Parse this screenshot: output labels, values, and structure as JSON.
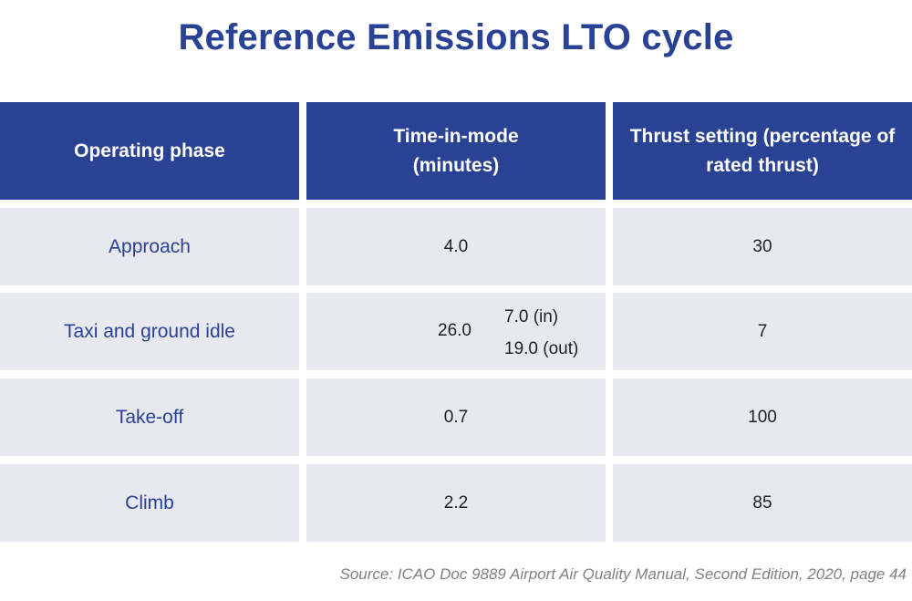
{
  "title": "Reference Emissions LTO cycle",
  "table": {
    "headers": [
      "Operating phase",
      "Time-in-mode (minutes)",
      "Thrust setting (percentage of rated thrust)"
    ],
    "rows": [
      {
        "phase": "Approach",
        "time": "4.0",
        "thrust": "30"
      },
      {
        "phase": "Taxi and ground idle",
        "time": "26.0",
        "time_in": "7.0 (in)",
        "time_out": "19.0 (out)",
        "thrust": "7"
      },
      {
        "phase": "Take-off",
        "time": "0.7",
        "thrust": "100"
      },
      {
        "phase": "Climb",
        "time": "2.2",
        "thrust": "85"
      }
    ]
  },
  "source": "Source: ICAO Doc 9889 Airport Air Quality Manual, Second Edition, 2020, page 44"
}
